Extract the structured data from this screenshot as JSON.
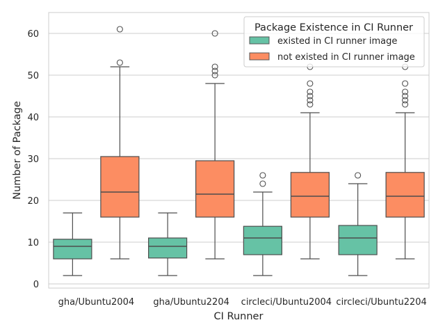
{
  "chart_data": {
    "type": "box",
    "title": "",
    "xlabel": "CI Runner",
    "ylabel": "Number of Package",
    "ylim": [
      -1,
      65
    ],
    "yticks": [
      0,
      10,
      20,
      30,
      40,
      50,
      60
    ],
    "grid": true,
    "legend_position": "top-right",
    "legend_title": "Package Existence in CI Runner",
    "categories": [
      "gha/Ubuntu2004",
      "gha/Ubuntu2204",
      "circleci/Ubuntu2004",
      "circleci/Ubuntu2204"
    ],
    "series": [
      {
        "name": "existed in CI runner image",
        "color": "#66c2a5",
        "boxes": [
          {
            "whisker_low": 2,
            "q1": 6,
            "median": 9,
            "q3": 10.7,
            "whisker_high": 17,
            "outliers": []
          },
          {
            "whisker_low": 2,
            "q1": 6.2,
            "median": 9,
            "q3": 11,
            "whisker_high": 17,
            "outliers": []
          },
          {
            "whisker_low": 2,
            "q1": 7,
            "median": 11,
            "q3": 13.8,
            "whisker_high": 22,
            "outliers": [
              24,
              26
            ]
          },
          {
            "whisker_low": 2,
            "q1": 7,
            "median": 11,
            "q3": 14,
            "whisker_high": 24,
            "outliers": [
              26
            ]
          }
        ]
      },
      {
        "name": "not existed in CI runner image",
        "color": "#fc8d62",
        "boxes": [
          {
            "whisker_low": 6,
            "q1": 16,
            "median": 22,
            "q3": 30.5,
            "whisker_high": 52,
            "outliers": [
              53,
              61
            ]
          },
          {
            "whisker_low": 6,
            "q1": 16,
            "median": 21.5,
            "q3": 29.5,
            "whisker_high": 48,
            "outliers": [
              50,
              51,
              52,
              60
            ]
          },
          {
            "whisker_low": 6,
            "q1": 16,
            "median": 21,
            "q3": 26.7,
            "whisker_high": 41,
            "outliers": [
              43,
              44,
              45,
              46,
              48,
              52
            ]
          },
          {
            "whisker_low": 6,
            "q1": 16,
            "median": 21,
            "q3": 26.7,
            "whisker_high": 41,
            "outliers": [
              43,
              44,
              45,
              46,
              48,
              52
            ]
          }
        ]
      }
    ]
  }
}
